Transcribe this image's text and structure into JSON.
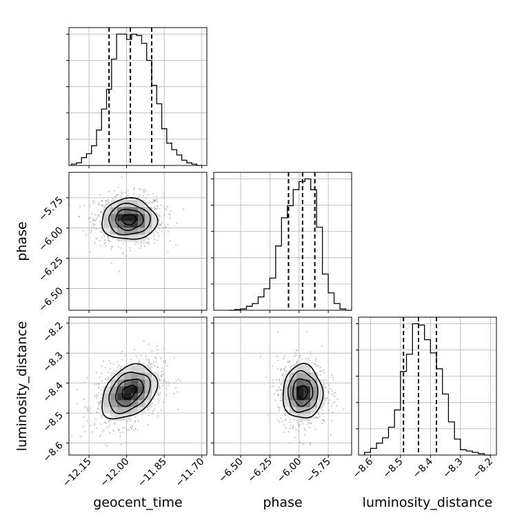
{
  "parameters": [
    "geocent_time",
    "phase",
    "luminosity_distance"
  ],
  "chart_data": [
    {
      "type": "histogram",
      "panel": "geocent_time marginal",
      "xlim": [
        -12.23,
        -11.68
      ],
      "x_ticks": [
        -12.15,
        -12.0,
        -11.85,
        -11.7
      ],
      "bin_edges": [
        -12.22,
        -12.2,
        -12.18,
        -12.16,
        -12.14,
        -12.12,
        -12.1,
        -12.08,
        -12.06,
        -12.04,
        -12.02,
        -12.0,
        -11.98,
        -11.96,
        -11.94,
        -11.92,
        -11.9,
        -11.88,
        -11.86,
        -11.84,
        -11.82,
        -11.8,
        -11.78,
        -11.76,
        -11.74,
        -11.72,
        -11.7
      ],
      "counts": [
        10,
        20,
        60,
        90,
        150,
        270,
        430,
        580,
        810,
        1000,
        1000,
        960,
        1000,
        990,
        930,
        800,
        610,
        470,
        280,
        170,
        120,
        80,
        40,
        20,
        10,
        0
      ],
      "quantiles": [
        -12.07,
        -11.985,
        -11.9
      ],
      "quantile_style": "dashed",
      "grid": true
    },
    {
      "type": "histogram",
      "panel": "phase marginal",
      "xlim": [
        -6.73,
        -5.55
      ],
      "x_ticks": [
        -6.5,
        -6.25,
        -6.0,
        -5.75
      ],
      "bin_edges": [
        -6.6,
        -6.55,
        -6.5,
        -6.45,
        -6.4,
        -6.35,
        -6.3,
        -6.25,
        -6.2,
        -6.15,
        -6.1,
        -6.05,
        -6.0,
        -5.95,
        -5.9,
        -5.85,
        -5.8,
        -5.75,
        -5.7,
        -5.65,
        -5.6,
        -5.55
      ],
      "counts": [
        0,
        5,
        10,
        30,
        50,
        100,
        160,
        240,
        480,
        690,
        780,
        900,
        960,
        980,
        900,
        620,
        270,
        130,
        50,
        10,
        0
      ],
      "quantiles": [
        -6.09,
        -5.97,
        -5.865
      ],
      "quantile_style": "dashed",
      "grid": true
    },
    {
      "type": "histogram",
      "panel": "luminosity_distance marginal",
      "xlim": [
        -8.64,
        -8.18
      ],
      "x_ticks": [
        -8.6,
        -8.5,
        -8.4,
        -8.3,
        -8.2
      ],
      "bin_edges": [
        -8.62,
        -8.6,
        -8.58,
        -8.56,
        -8.54,
        -8.52,
        -8.5,
        -8.48,
        -8.46,
        -8.44,
        -8.42,
        -8.4,
        -8.38,
        -8.36,
        -8.34,
        -8.32,
        -8.3,
        -8.28,
        -8.26,
        -8.24,
        -8.22,
        -8.2
      ],
      "counts": [
        20,
        50,
        90,
        130,
        210,
        340,
        630,
        760,
        990,
        980,
        870,
        770,
        650,
        460,
        250,
        120,
        40,
        30,
        20,
        10,
        0
      ],
      "quantiles": [
        -8.49,
        -8.44,
        -8.38
      ],
      "quantile_style": "dashed",
      "grid": true
    },
    {
      "type": "heatmap",
      "panel": "geocent_time vs phase",
      "x_param": "geocent_time",
      "y_param": "phase",
      "xlim": [
        -12.23,
        -11.68
      ],
      "ylim": [
        -6.68,
        -5.54
      ],
      "x_ticks": [
        -12.15,
        -12.0,
        -11.85,
        -11.7
      ],
      "y_ticks": [
        -5.75,
        -6.0,
        -6.25,
        -6.5
      ],
      "center": [
        -11.99,
        -5.93
      ],
      "sigma": [
        0.055,
        0.085
      ],
      "correlation": 0.0,
      "contour_levels_sigma": [
        0.5,
        1.0,
        1.5,
        2.0
      ],
      "peaks": [
        [
          -12.02,
          -5.9
        ],
        [
          -11.98,
          -5.9
        ],
        [
          -11.96,
          -5.94
        ]
      ],
      "scatter_points": "gray samples beyond outer contour",
      "grid": true
    },
    {
      "type": "heatmap",
      "panel": "geocent_time vs luminosity_distance",
      "x_param": "geocent_time",
      "y_param": "luminosity_distance",
      "xlim": [
        -12.23,
        -11.68
      ],
      "ylim": [
        -8.64,
        -8.18
      ],
      "x_ticks": [
        -12.15,
        -12.0,
        -11.85,
        -11.7
      ],
      "y_ticks": [
        -8.2,
        -8.3,
        -8.4,
        -8.5,
        -8.6
      ],
      "center": [
        -11.99,
        -8.43
      ],
      "sigma": [
        0.055,
        0.045
      ],
      "correlation": 0.35,
      "contour_levels_sigma": [
        0.5,
        1.0,
        1.5,
        2.0
      ],
      "peaks": [
        [
          -12.01,
          -8.44
        ],
        [
          -11.96,
          -8.42
        ]
      ],
      "scatter_points": "gray samples beyond outer contour",
      "grid": true
    },
    {
      "type": "heatmap",
      "panel": "phase vs luminosity_distance",
      "x_param": "phase",
      "y_param": "luminosity_distance",
      "xlim": [
        -6.73,
        -5.55
      ],
      "ylim": [
        -8.64,
        -8.18
      ],
      "x_ticks": [
        -6.5,
        -6.25,
        -6.0,
        -5.75
      ],
      "y_ticks": [
        -8.2,
        -8.3,
        -8.4,
        -8.5,
        -8.6
      ],
      "center": [
        -5.97,
        -8.43
      ],
      "sigma": [
        0.085,
        0.045
      ],
      "correlation": 0.0,
      "contour_levels_sigma": [
        0.5,
        1.0,
        1.5,
        2.0
      ],
      "peaks": [
        [
          -6.0,
          -8.44
        ],
        [
          -5.96,
          -8.43
        ]
      ],
      "scatter_points": "gray samples beyond outer contour",
      "grid": true
    }
  ],
  "labels": {
    "x_geocent": "geocent_time",
    "x_phase": "phase",
    "x_lum": "luminosity_distance",
    "y_phase": "phase",
    "y_lum": "luminosity_distance"
  },
  "tick_labels": {
    "geocent": [
      "−12.15",
      "−12.00",
      "−11.85",
      "−11.70"
    ],
    "phase": [
      "−6.50",
      "−6.25",
      "−6.00",
      "−5.75"
    ],
    "lum": [
      "−8.6",
      "−8.5",
      "−8.4",
      "−8.3",
      "−8.2"
    ]
  },
  "colors": {
    "hist_line": "#000000",
    "grid": "#b0b0b0",
    "scatter": "#9a9a9a",
    "density_dark": "#000000"
  }
}
